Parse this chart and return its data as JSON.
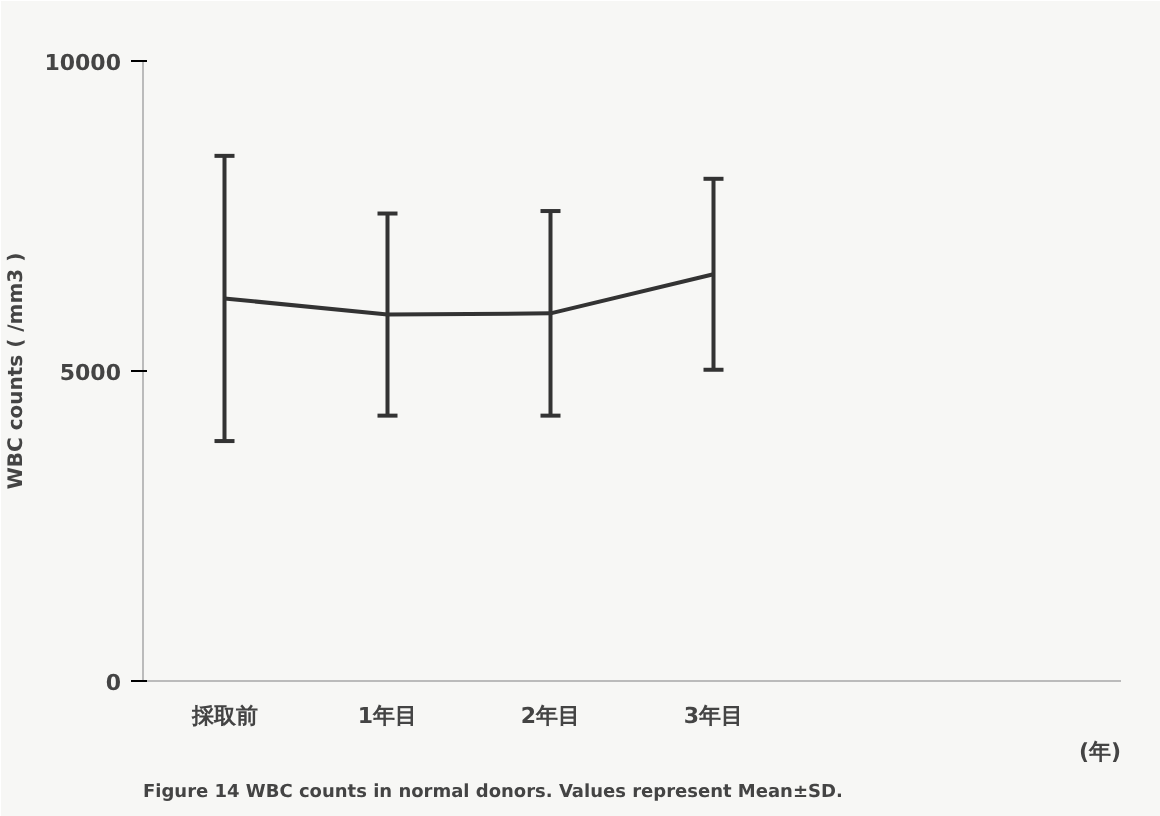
{
  "chart_data": {
    "type": "line",
    "categories": [
      "採取前",
      "1年目",
      "2年目",
      "3年目",
      null,
      null
    ],
    "values": [
      6170,
      5910,
      5930,
      6560,
      null,
      null
    ],
    "errors": [
      2300,
      1630,
      1650,
      1540,
      null,
      null
    ],
    "color": "#333333",
    "xlabel": "(年)",
    "ylabel": "WBC counts ( /mm3 )",
    "ylim": [
      0,
      10000
    ],
    "yticks": [
      0,
      5000,
      10000
    ],
    "grid": false,
    "marker": "none",
    "line_style": "solid",
    "annotations": [
      "Figure 14  WBC counts in normal donors. Values represent Mean±SD."
    ]
  }
}
